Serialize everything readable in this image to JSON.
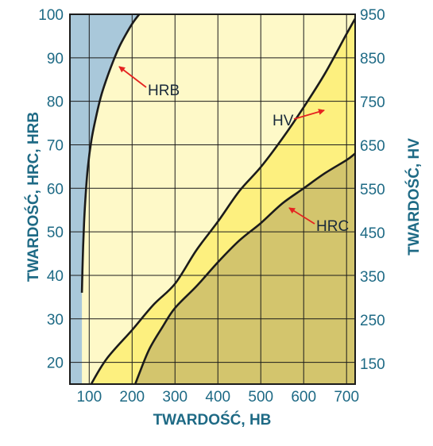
{
  "chart_data": {
    "type": "line",
    "title": "",
    "xlabel": "TWARDOŚĆ, HB",
    "ylabel_left": "TWARDOŚĆ, HRC, HRB",
    "ylabel_right": "TWARDOŚĆ, HV",
    "xlim": [
      55,
      720
    ],
    "ylim_left": [
      15,
      100
    ],
    "ylim_right": [
      103,
      950
    ],
    "x_ticks": [
      "100",
      "200",
      "300",
      "400",
      "500",
      "600",
      "700"
    ],
    "x_tick_values": [
      100,
      200,
      300,
      400,
      500,
      600,
      700
    ],
    "y_left_ticks": [
      "20",
      "30",
      "40",
      "50",
      "60",
      "70",
      "80",
      "90",
      "100"
    ],
    "y_left_tick_values": [
      20,
      30,
      40,
      50,
      60,
      70,
      80,
      90,
      100
    ],
    "y_right_ticks": [
      "150",
      "250",
      "350",
      "450",
      "550",
      "650",
      "750",
      "850",
      "950"
    ],
    "y_right_tick_values": [
      150,
      250,
      350,
      450,
      550,
      650,
      750,
      850,
      950
    ],
    "grid": true,
    "series": [
      {
        "name": "HRB",
        "axis": "left",
        "x": [
          83,
          85,
          88,
          92,
          97,
          105,
          115,
          127,
          140,
          155,
          170,
          185,
          200,
          215,
          230,
          240
        ],
        "y": [
          36,
          44,
          52,
          59,
          65,
          71,
          76,
          81,
          85,
          89,
          92.5,
          95.3,
          97.8,
          99.8,
          101.5,
          102.5
        ]
      },
      {
        "name": "HV",
        "axis": "right",
        "x": [
          100,
          140,
          200,
          250,
          300,
          350,
          400,
          450,
          500,
          550,
          600,
          650,
          700,
          720
        ],
        "y": [
          95,
          160,
          227,
          285,
          333,
          410,
          475,
          545,
          600,
          665,
          737,
          815,
          905,
          940
        ]
      },
      {
        "name": "HRC",
        "axis": "left",
        "x": [
          200,
          215,
          240,
          270,
          300,
          350,
          400,
          450,
          500,
          550,
          600,
          650,
          700,
          720
        ],
        "y": [
          13,
          17,
          23,
          28,
          32.5,
          37.5,
          43,
          48,
          52,
          56.5,
          60,
          63.5,
          66.5,
          68
        ]
      }
    ],
    "annotations": [
      {
        "text": "HRB",
        "series": "HRB"
      },
      {
        "text": "HV",
        "series": "HV"
      },
      {
        "text": "HRC",
        "series": "HRC"
      }
    ],
    "colors": {
      "blue_region": "#a9c8da",
      "light_yellow_region": "#fef9c8",
      "yellow_region": "#fdf07f",
      "olive_region": "#d3c56d",
      "curve": "#1b1b1b",
      "grid": "#1b1b1b",
      "arrow": "#e52320",
      "text": "#1e6a85",
      "annotation_text": "#1a2a3a"
    }
  }
}
